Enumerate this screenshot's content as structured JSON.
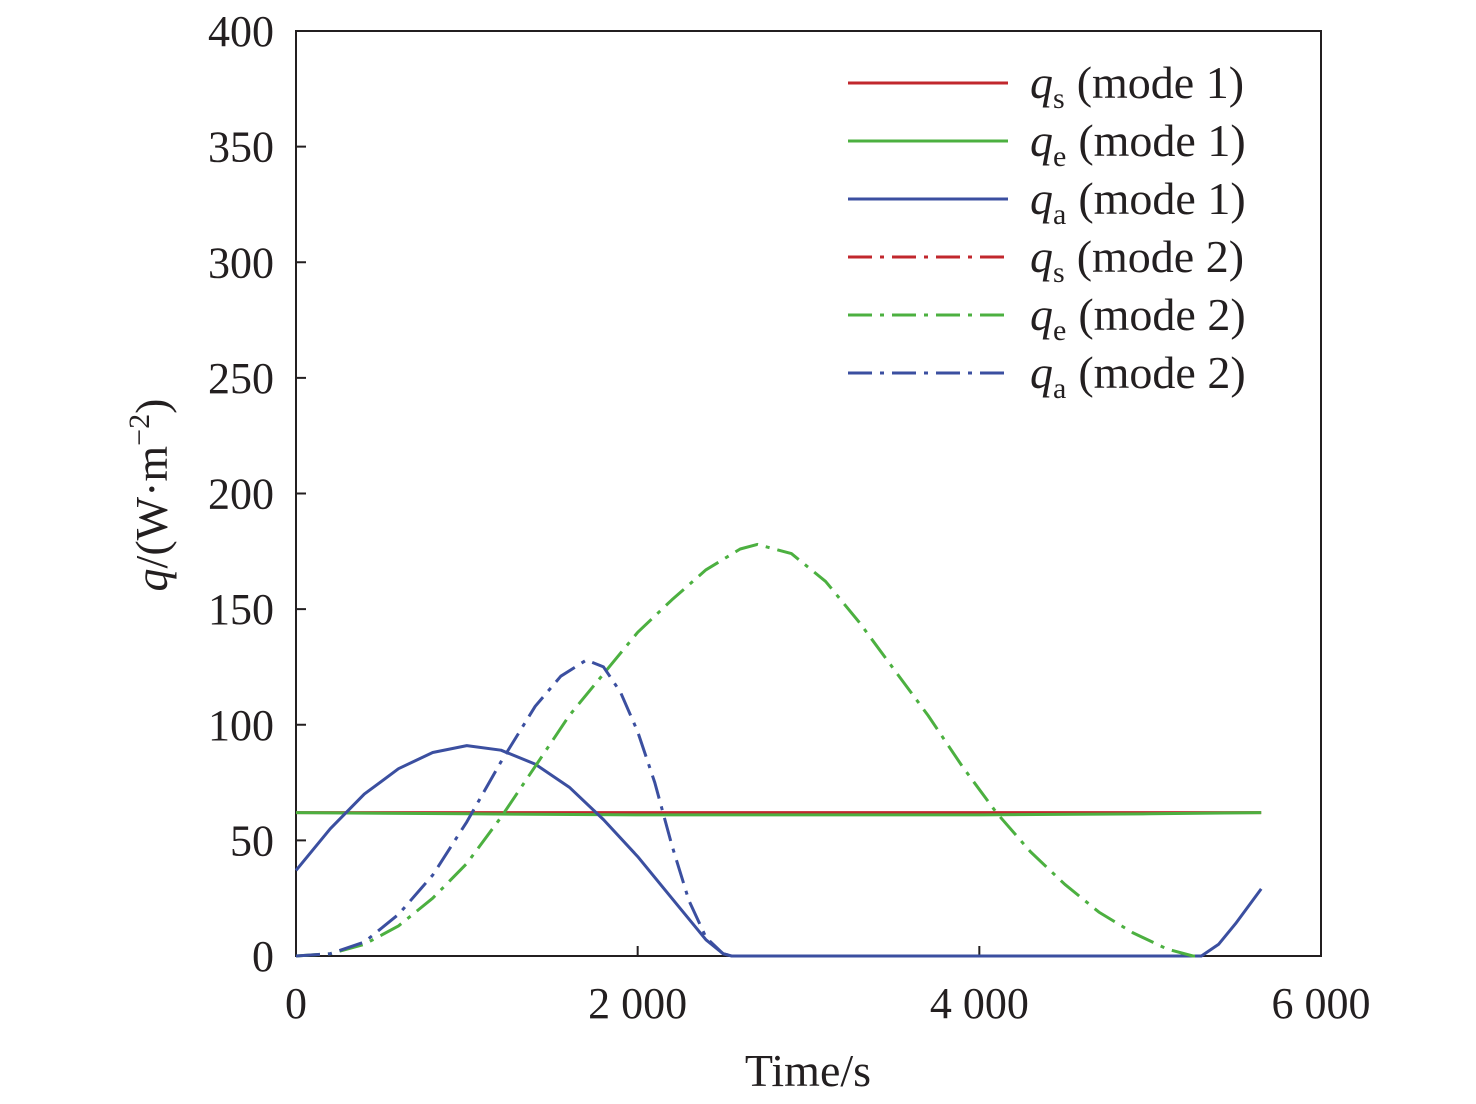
{
  "chart_data": {
    "type": "line",
    "xlabel": "Time/s",
    "ylabel": {
      "symbol": "q",
      "unit": "/(W·m",
      "exponent": "−2",
      "close": ")"
    },
    "xlim": [
      0,
      6000
    ],
    "ylim": [
      0,
      400
    ],
    "x_ticks": [
      0,
      2000,
      4000,
      6000
    ],
    "x_tick_labels": [
      "0",
      "2 000",
      "4 000",
      "6 000"
    ],
    "y_ticks": [
      0,
      50,
      100,
      150,
      200,
      250,
      300,
      350,
      400
    ],
    "y_tick_labels": [
      "0",
      "50",
      "100",
      "150",
      "200",
      "250",
      "300",
      "350",
      "400"
    ],
    "grid": false,
    "legend_position": "top-right",
    "series": [
      {
        "name": "qs (mode 1)",
        "symbol": "q",
        "subscript": "s",
        "mode_label": "(mode 1)",
        "color": "#c1272d",
        "dash": "solid",
        "points": [
          [
            0,
            62
          ],
          [
            5650,
            62
          ]
        ]
      },
      {
        "name": "qe (mode 1)",
        "symbol": "q",
        "subscript": "e",
        "mode_label": "(mode 1)",
        "color": "#4cb040",
        "dash": "solid",
        "points": [
          [
            0,
            62
          ],
          [
            1000,
            61.5
          ],
          [
            2000,
            61
          ],
          [
            3000,
            61
          ],
          [
            4000,
            61
          ],
          [
            5000,
            61.5
          ],
          [
            5650,
            62
          ]
        ]
      },
      {
        "name": "qa (mode 1)",
        "symbol": "q",
        "subscript": "a",
        "mode_label": "(mode 1)",
        "color": "#3b4fa0",
        "dash": "solid",
        "points": [
          [
            0,
            37
          ],
          [
            200,
            55
          ],
          [
            400,
            70
          ],
          [
            600,
            81
          ],
          [
            800,
            88
          ],
          [
            1000,
            91
          ],
          [
            1200,
            89
          ],
          [
            1400,
            83
          ],
          [
            1600,
            73
          ],
          [
            1800,
            59
          ],
          [
            2000,
            43
          ],
          [
            2200,
            25
          ],
          [
            2400,
            7
          ],
          [
            2500,
            1
          ],
          [
            2550,
            0
          ],
          [
            5300,
            0
          ],
          [
            5400,
            5
          ],
          [
            5500,
            14
          ],
          [
            5650,
            29
          ]
        ]
      },
      {
        "name": "qs (mode 2)",
        "symbol": "q",
        "subscript": "s",
        "mode_label": "(mode 2)",
        "color": "#c1272d",
        "dash": "dashdot",
        "points": []
      },
      {
        "name": "qe (mode 2)",
        "symbol": "q",
        "subscript": "e",
        "mode_label": "(mode 2)",
        "color": "#4cb040",
        "dash": "dashdot",
        "points": [
          [
            0,
            0
          ],
          [
            200,
            1
          ],
          [
            400,
            5
          ],
          [
            600,
            13
          ],
          [
            800,
            25
          ],
          [
            1000,
            40
          ],
          [
            1200,
            60
          ],
          [
            1400,
            82
          ],
          [
            1600,
            104
          ],
          [
            1800,
            122
          ],
          [
            2000,
            140
          ],
          [
            2200,
            154
          ],
          [
            2400,
            167
          ],
          [
            2600,
            176
          ],
          [
            2700,
            178
          ],
          [
            2900,
            174
          ],
          [
            3100,
            162
          ],
          [
            3300,
            144
          ],
          [
            3500,
            124
          ],
          [
            3700,
            104
          ],
          [
            3900,
            82
          ],
          [
            4100,
            62
          ],
          [
            4300,
            45
          ],
          [
            4500,
            31
          ],
          [
            4700,
            19
          ],
          [
            4900,
            10
          ],
          [
            5100,
            3
          ],
          [
            5250,
            0
          ],
          [
            5300,
            0
          ]
        ]
      },
      {
        "name": "qa (mode 2)",
        "symbol": "q",
        "subscript": "a",
        "mode_label": "(mode 2)",
        "color": "#3b4fa0",
        "dash": "dashdot",
        "points": [
          [
            0,
            0
          ],
          [
            200,
            1
          ],
          [
            400,
            6
          ],
          [
            600,
            18
          ],
          [
            800,
            35
          ],
          [
            1000,
            58
          ],
          [
            1200,
            84
          ],
          [
            1400,
            108
          ],
          [
            1550,
            121
          ],
          [
            1700,
            128
          ],
          [
            1800,
            125
          ],
          [
            1900,
            114
          ],
          [
            2000,
            97
          ],
          [
            2100,
            75
          ],
          [
            2200,
            48
          ],
          [
            2300,
            24
          ],
          [
            2400,
            8
          ],
          [
            2500,
            1
          ],
          [
            2550,
            0
          ]
        ]
      }
    ]
  }
}
